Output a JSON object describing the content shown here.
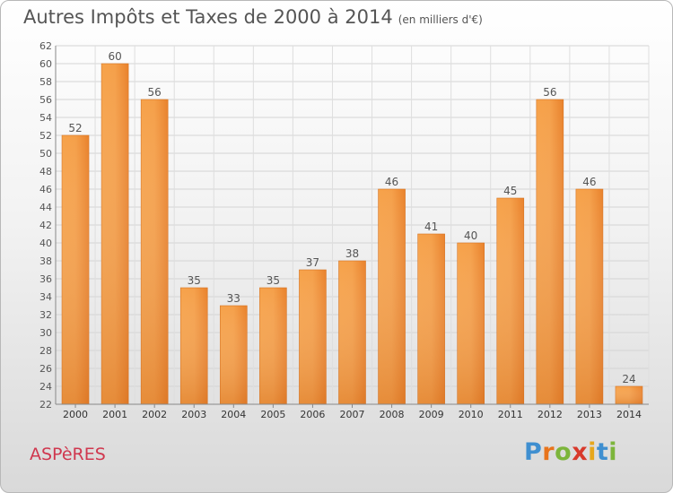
{
  "header": {
    "title": "Autres Impôts et Taxes de 2000 à 2014",
    "unit": "(en milliers d'€)"
  },
  "footer": {
    "commune": "ASPèRES",
    "logo_letters": [
      "P",
      "r",
      "o",
      "x",
      "i",
      "t",
      "i"
    ],
    "logo_colors": [
      "#3f8fd0",
      "#e8741c",
      "#7cb53b",
      "#d8392b",
      "#e7a71c",
      "#3f8fd0",
      "#7cb53b"
    ]
  },
  "chart_data": {
    "type": "bar",
    "categories": [
      "2000",
      "2001",
      "2002",
      "2003",
      "2004",
      "2005",
      "2006",
      "2007",
      "2008",
      "2009",
      "2010",
      "2011",
      "2012",
      "2013",
      "2014"
    ],
    "values": [
      52,
      60,
      56,
      35,
      33,
      35,
      37,
      38,
      46,
      41,
      40,
      45,
      56,
      46,
      24
    ],
    "ylim": [
      22,
      62
    ],
    "yticks": [
      22,
      24,
      26,
      28,
      30,
      32,
      34,
      36,
      38,
      40,
      42,
      44,
      46,
      48,
      50,
      52,
      54,
      56,
      58,
      60,
      62
    ],
    "grid": true,
    "bar_color": "#ee8a33"
  }
}
